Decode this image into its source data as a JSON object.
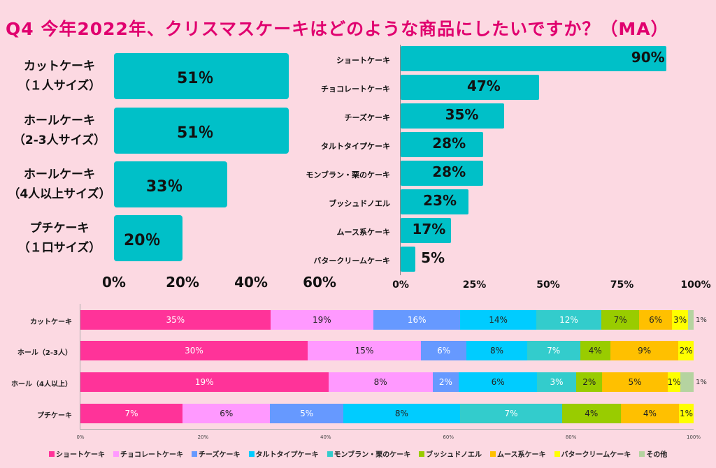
{
  "title": "Q4 今年2022年、クリスマスケーキはどのような商品にしたいですか？（MA）",
  "chart_data": [
    {
      "type": "bar",
      "orientation": "horizontal",
      "categories": [
        [
          "カットケーキ",
          "（１人サイズ）"
        ],
        [
          "ホールケーキ",
          "（2-3人サイズ）"
        ],
        [
          "ホールケーキ",
          "（4人以上サイズ）"
        ],
        [
          "プチケーキ",
          "（１口サイズ）"
        ]
      ],
      "values": [
        51,
        51,
        33,
        20
      ],
      "value_labels": [
        "51％",
        "51％",
        "33％",
        "20％"
      ],
      "xlim": [
        0,
        60
      ],
      "xticks": [
        "0%",
        "20%",
        "40%",
        "60%"
      ],
      "color": "#00c0c8"
    },
    {
      "type": "bar",
      "orientation": "horizontal",
      "categories": [
        "ショートケーキ",
        "チョコレートケーキ",
        "チーズケーキ",
        "タルトタイプケーキ",
        "モンブラン・栗のケーキ",
        "ブッシュドノエル",
        "ムース系ケーキ",
        "バタークリームケーキ"
      ],
      "values": [
        90,
        47,
        35,
        28,
        28,
        23,
        17,
        5
      ],
      "value_labels": [
        "90%",
        "47%",
        "35%",
        "28%",
        "28%",
        "23%",
        "17%",
        "5%"
      ],
      "xlim": [
        0,
        100
      ],
      "xticks": [
        "0%",
        "25%",
        "50%",
        "75%",
        "100%"
      ],
      "color": "#00c0c8"
    },
    {
      "type": "bar",
      "stacked": "100%",
      "orientation": "horizontal",
      "categories": [
        "カットケーキ",
        "ホール（2-3人）",
        "ホール（4人以上）",
        "プチケーキ"
      ],
      "xticks": [
        "0%",
        "20%",
        "40%",
        "60%",
        "80%",
        "100%"
      ],
      "legend_position": "bottom",
      "series": [
        {
          "name": "ショートケーキ",
          "color": "#ff3399",
          "label_color": "#ffffff",
          "values": [
            35,
            30,
            19,
            7
          ]
        },
        {
          "name": "チョコレートケーキ",
          "color": "#ff99ff",
          "label_color": "#222222",
          "values": [
            19,
            15,
            8,
            6
          ]
        },
        {
          "name": "チーズケーキ",
          "color": "#6699ff",
          "label_color": "#ffffff",
          "values": [
            16,
            6,
            2,
            5
          ]
        },
        {
          "name": "タルトタイプケーキ",
          "color": "#00ccff",
          "label_color": "#222222",
          "values": [
            14,
            8,
            6,
            8
          ]
        },
        {
          "name": "モンブラン・栗のケーキ",
          "color": "#33cccc",
          "label_color": "#ffffff",
          "values": [
            12,
            7,
            3,
            7
          ]
        },
        {
          "name": "ブッシュドノエル",
          "color": "#99cc00",
          "label_color": "#222222",
          "values": [
            7,
            4,
            2,
            4
          ]
        },
        {
          "name": "ムース系ケーキ",
          "color": "#ffc000",
          "label_color": "#222222",
          "values": [
            6,
            9,
            5,
            4
          ]
        },
        {
          "name": "バタークリームケーキ",
          "color": "#ffff00",
          "label_color": "#222222",
          "values": [
            3,
            2,
            1,
            1
          ]
        },
        {
          "name": "その他",
          "color": "#b5d3a0",
          "label_color": "#222222",
          "values": [
            1,
            0,
            1,
            0
          ]
        }
      ]
    }
  ]
}
